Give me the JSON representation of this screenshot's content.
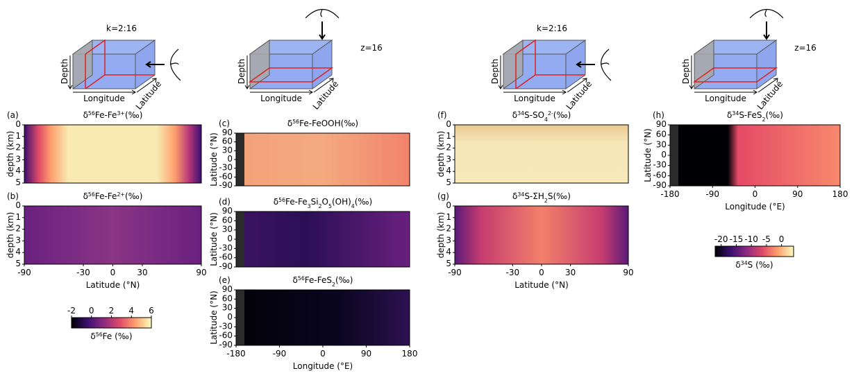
{
  "diagrams": [
    {
      "label": "k=2:16",
      "depth": "Depth",
      "lon": "Longitude",
      "lat": "Latitude"
    },
    {
      "label": "z=16",
      "depth": "Depth",
      "lon": "Longitude",
      "lat": "Latitude"
    },
    {
      "label": "k=2:16",
      "depth": "Depth",
      "lon": "Longitude",
      "lat": "Latitude"
    },
    {
      "label": "z=16",
      "depth": "Depth",
      "lon": "Longitude",
      "lat": "Latitude"
    }
  ],
  "panels": [
    {
      "label": "(a)",
      "title": [
        {
          "t": "δ"
        },
        {
          "sup": "56"
        },
        {
          "t": "Fe-Fe"
        },
        {
          "sup": "3+"
        },
        {
          "t": "(‰)"
        }
      ],
      "ylabel": "depth (km)",
      "ylim": [
        0,
        5
      ],
      "yticks": [
        0,
        1,
        2,
        3,
        4,
        5
      ]
    },
    {
      "label": "(b)",
      "title": [
        {
          "t": "δ"
        },
        {
          "sup": "56"
        },
        {
          "t": "Fe-Fe"
        },
        {
          "sup": "2+"
        },
        {
          "t": "(‰)"
        }
      ],
      "ylabel": "depth (km)",
      "ylim": [
        0,
        5
      ],
      "yticks": [
        0,
        1,
        2,
        3,
        4,
        5
      ],
      "xlim": [
        -90,
        90
      ],
      "xticks": [
        -90,
        -30,
        0,
        30,
        90
      ],
      "xlabel": "Latitude (°N)"
    },
    {
      "label": "(c)",
      "title": [
        {
          "t": "δ"
        },
        {
          "sup": "56"
        },
        {
          "t": "Fe-FeOOH(‰)"
        }
      ],
      "ylabel": "Latitude (°N)",
      "ylim": [
        90,
        -90
      ],
      "yticks": [
        90,
        60,
        30,
        0,
        -30,
        -60,
        -90
      ]
    },
    {
      "label": "(d)",
      "title": [
        {
          "t": "δ"
        },
        {
          "sup": "56"
        },
        {
          "t": "Fe-Fe"
        },
        {
          "sub": "3"
        },
        {
          "t": "Si"
        },
        {
          "sub": "2"
        },
        {
          "t": "O"
        },
        {
          "sub": "5"
        },
        {
          "t": "(OH)"
        },
        {
          "sub": "4"
        },
        {
          "t": "(‰)"
        }
      ],
      "ylabel": "Latitude (°N)",
      "ylim": [
        90,
        -90
      ],
      "yticks": [
        90,
        60,
        30,
        0,
        -30,
        -60,
        -90
      ]
    },
    {
      "label": "(e)",
      "title": [
        {
          "t": "δ"
        },
        {
          "sup": "56"
        },
        {
          "t": "Fe-FeS"
        },
        {
          "sub": "2"
        },
        {
          "t": "(‰)"
        }
      ],
      "ylabel": "Latitude (°N)",
      "ylim": [
        90,
        -90
      ],
      "yticks": [
        90,
        60,
        30,
        0,
        -30,
        -60,
        -90
      ],
      "xlim": [
        -180,
        180
      ],
      "xticks": [
        -180,
        -90,
        0,
        90,
        180
      ],
      "xlabel": "Longitude (°E)"
    },
    {
      "label": "(f)",
      "title": [
        {
          "t": "δ"
        },
        {
          "sup": "34"
        },
        {
          "t": "S-SO"
        },
        {
          "sub": "4"
        },
        {
          "sup": "2-"
        },
        {
          "t": "(‰)"
        }
      ],
      "ylabel": "depth (km)",
      "ylim": [
        0,
        5
      ],
      "yticks": [
        0,
        1,
        2,
        3,
        4,
        5
      ]
    },
    {
      "label": "(g)",
      "title": [
        {
          "t": "δ"
        },
        {
          "sup": "34"
        },
        {
          "t": "S-ΣH"
        },
        {
          "sub": "2"
        },
        {
          "t": "S(‰)"
        }
      ],
      "ylabel": "depth (km)",
      "ylim": [
        0,
        5
      ],
      "yticks": [
        0,
        1,
        2,
        3,
        4,
        5
      ],
      "xlim": [
        -90,
        90
      ],
      "xticks": [
        -90,
        -30,
        0,
        30,
        90
      ],
      "xlabel": "Latitude (°N)"
    },
    {
      "label": "(h)",
      "title": [
        {
          "t": "δ"
        },
        {
          "sup": "34"
        },
        {
          "t": "S-FeS"
        },
        {
          "sub": "2"
        },
        {
          "t": "(‰)"
        }
      ],
      "ylabel": "Latitude (°N)",
      "ylim": [
        90,
        -90
      ],
      "yticks": [
        90,
        60,
        30,
        0,
        -30,
        -60,
        -90
      ],
      "xlim": [
        -180,
        180
      ],
      "xticks": [
        -180,
        -90,
        0,
        90,
        180
      ],
      "xlabel": "Longitude (°E)"
    }
  ],
  "colorbars": [
    {
      "lim": [
        -2,
        6
      ],
      "ticks": [
        -2,
        0,
        2,
        4,
        6
      ],
      "label": [
        {
          "t": "δ"
        },
        {
          "sup": "56"
        },
        {
          "t": "Fe (‰)"
        }
      ]
    },
    {
      "lim": [
        -22,
        4
      ],
      "ticks": [
        -20,
        -15,
        -10,
        -5,
        0
      ],
      "label": [
        {
          "t": "δ"
        },
        {
          "sup": "34"
        },
        {
          "t": "S (‰)"
        }
      ]
    }
  ]
}
